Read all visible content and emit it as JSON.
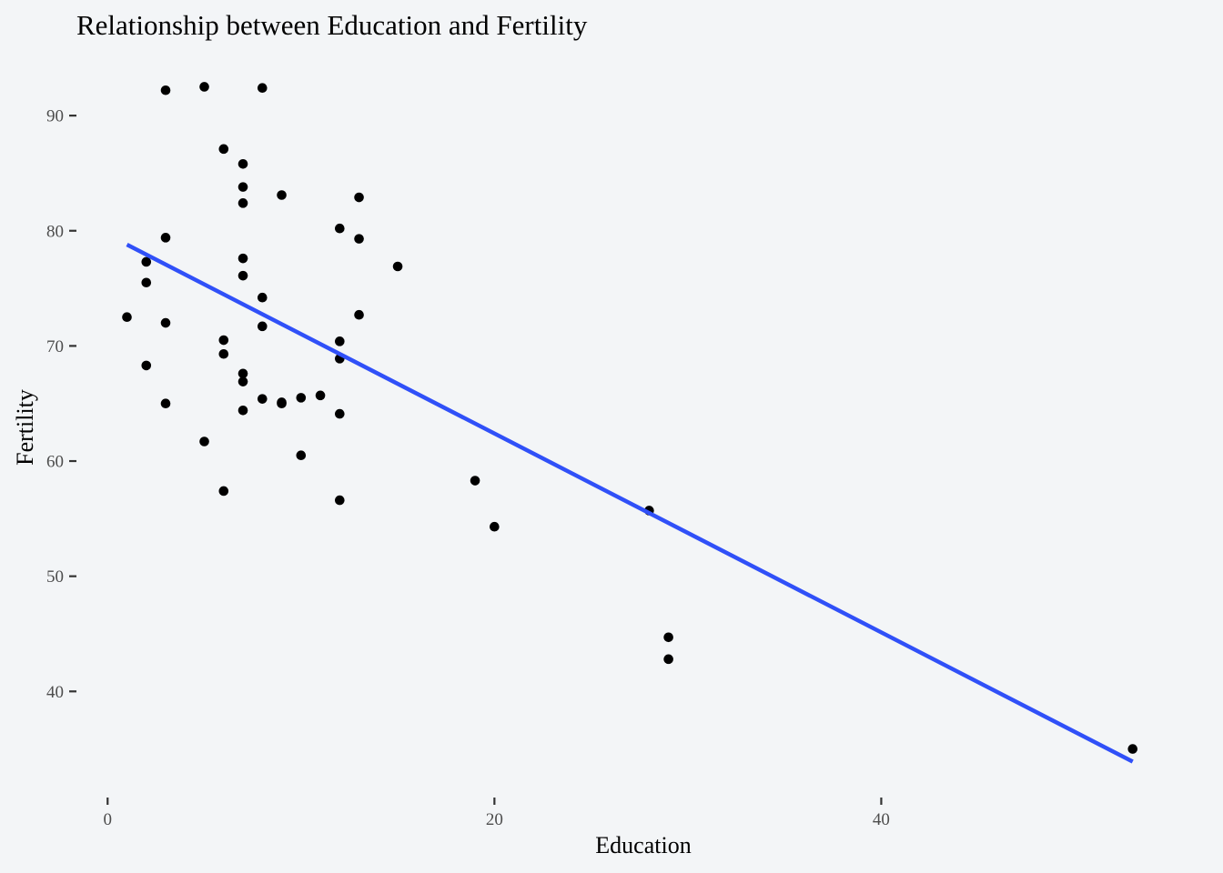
{
  "chart_data": {
    "type": "scatter",
    "title": "Relationship between Education and Fertility",
    "xlabel": "Education",
    "ylabel": "Fertility",
    "xlim": [
      -2.6,
      55.6
    ],
    "ylim": [
      31.1,
      95.3
    ],
    "x_ticks": [
      {
        "value": 0,
        "label": "0"
      },
      {
        "value": 20,
        "label": "20"
      },
      {
        "value": 40,
        "label": "40"
      }
    ],
    "y_ticks": [
      {
        "value": 40,
        "label": "40"
      },
      {
        "value": 50,
        "label": "50"
      },
      {
        "value": 60,
        "label": "60"
      },
      {
        "value": 70,
        "label": "70"
      },
      {
        "value": 80,
        "label": "80"
      },
      {
        "value": 90,
        "label": "90"
      }
    ],
    "grid": false,
    "legend": "none",
    "point_color": "#000000",
    "line_color": "#3050f8",
    "background_color": "#f3f5f7",
    "points": [
      {
        "x": 12,
        "y": 80.2
      },
      {
        "x": 9,
        "y": 83.1
      },
      {
        "x": 5,
        "y": 92.5
      },
      {
        "x": 7,
        "y": 85.8
      },
      {
        "x": 15,
        "y": 76.9
      },
      {
        "x": 7,
        "y": 76.1
      },
      {
        "x": 7,
        "y": 83.8
      },
      {
        "x": 8,
        "y": 92.4
      },
      {
        "x": 7,
        "y": 82.4
      },
      {
        "x": 13,
        "y": 82.9
      },
      {
        "x": 6,
        "y": 87.1
      },
      {
        "x": 12,
        "y": 64.1
      },
      {
        "x": 7,
        "y": 66.9
      },
      {
        "x": 12,
        "y": 68.9
      },
      {
        "x": 5,
        "y": 61.7
      },
      {
        "x": 2,
        "y": 68.3
      },
      {
        "x": 8,
        "y": 71.7
      },
      {
        "x": 28,
        "y": 55.7
      },
      {
        "x": 20,
        "y": 54.3
      },
      {
        "x": 9,
        "y": 65.1
      },
      {
        "x": 10,
        "y": 65.5
      },
      {
        "x": 3,
        "y": 65.0
      },
      {
        "x": 12,
        "y": 56.6
      },
      {
        "x": 6,
        "y": 57.4
      },
      {
        "x": 1,
        "y": 72.5
      },
      {
        "x": 8,
        "y": 74.2
      },
      {
        "x": 3,
        "y": 72.0
      },
      {
        "x": 10,
        "y": 60.5
      },
      {
        "x": 19,
        "y": 58.3
      },
      {
        "x": 8,
        "y": 65.4
      },
      {
        "x": 2,
        "y": 75.5
      },
      {
        "x": 6,
        "y": 69.3
      },
      {
        "x": 2,
        "y": 77.3
      },
      {
        "x": 6,
        "y": 70.5
      },
      {
        "x": 3,
        "y": 79.4
      },
      {
        "x": 9,
        "y": 65.0
      },
      {
        "x": 3,
        "y": 92.2
      },
      {
        "x": 13,
        "y": 79.3
      },
      {
        "x": 12,
        "y": 70.4
      },
      {
        "x": 11,
        "y": 65.7
      },
      {
        "x": 13,
        "y": 72.7
      },
      {
        "x": 7,
        "y": 64.4
      },
      {
        "x": 53,
        "y": 35.0
      },
      {
        "x": 29,
        "y": 44.7
      },
      {
        "x": 29,
        "y": 42.8
      },
      {
        "x": 7,
        "y": 77.6
      },
      {
        "x": 7,
        "y": 67.6
      }
    ],
    "trend_line": {
      "x": [
        1,
        53
      ],
      "y": [
        78.8,
        33.9
      ]
    }
  }
}
